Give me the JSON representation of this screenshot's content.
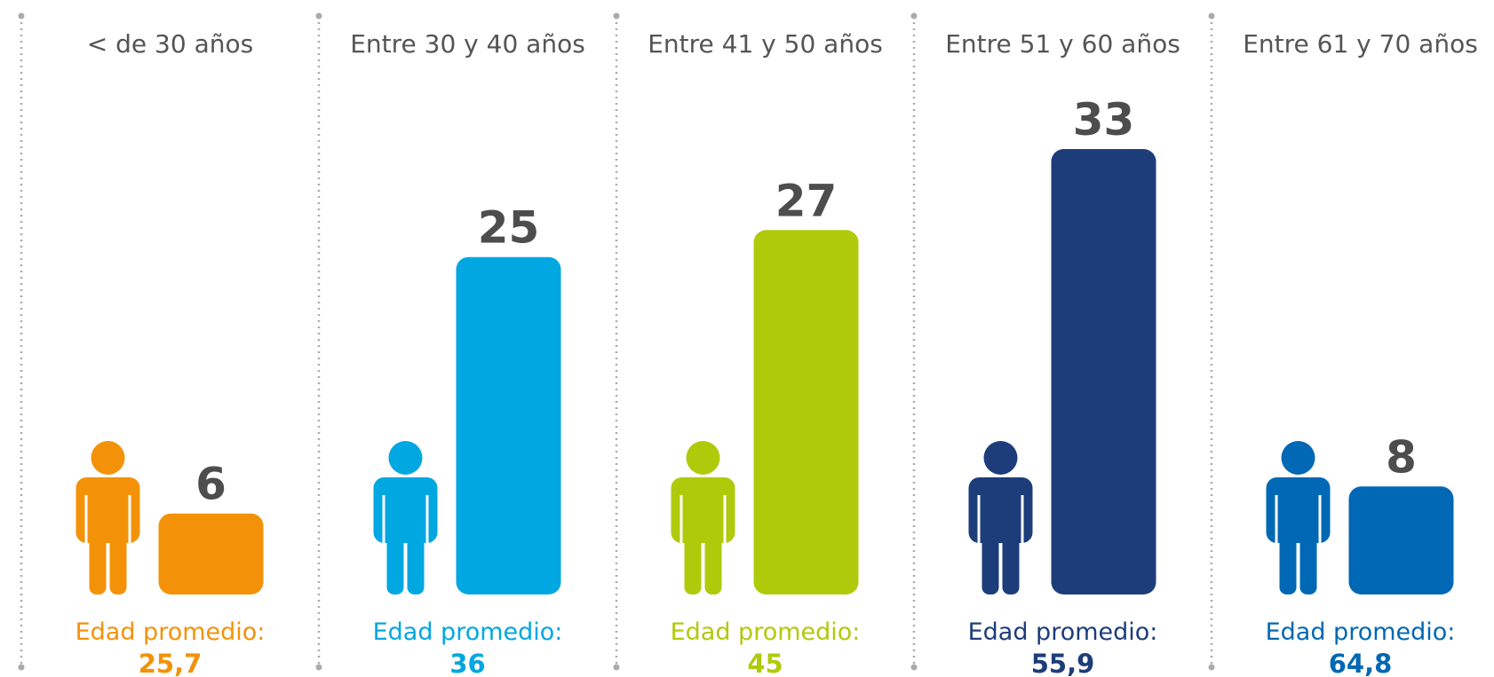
{
  "chart_data": {
    "type": "bar",
    "categories": [
      "< de 30 años",
      "Entre 30 y 40 años",
      "Entre 41 y 50 años",
      "Entre 51 y 60 años",
      "Entre 61 y 70 años"
    ],
    "values": [
      6,
      25,
      27,
      33,
      8
    ],
    "colors": [
      "#f39208",
      "#00a7e1",
      "#afca0b",
      "#1d3d7a",
      "#0068b4"
    ],
    "ylim": [
      0,
      33
    ],
    "average_label": "Edad promedio:",
    "averages": [
      25.7,
      36,
      45,
      55.9,
      64.8
    ],
    "average_labels": [
      "25,7",
      "36",
      "45",
      "55,9",
      "64,8"
    ]
  }
}
